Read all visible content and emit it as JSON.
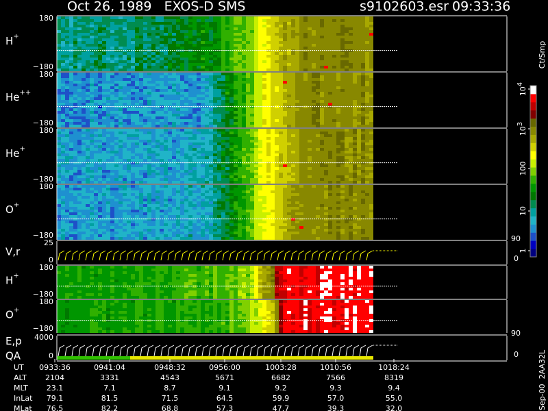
{
  "header": {
    "title": "Oct 26, 1989   EXOS-D SMS",
    "file": "s9102603.esr",
    "time": "09:33:36"
  },
  "panels": [
    {
      "label": "H",
      "sup": "+",
      "top": "180",
      "bottom": "−180"
    },
    {
      "label": "He",
      "sup": "++",
      "top": "180",
      "bottom": "−180"
    },
    {
      "label": "He",
      "sup": "+",
      "top": "180",
      "bottom": "−180"
    },
    {
      "label": "O",
      "sup": "+",
      "top": "180",
      "bottom": "−180"
    },
    {
      "label": "V,r",
      "top": "25",
      "bottom": "0",
      "right_top": "90",
      "right_bottom": "0"
    },
    {
      "label": "H",
      "sup": "+",
      "top": "180",
      "bottom": "−180"
    },
    {
      "label": "O",
      "sup": "+",
      "top": "180",
      "bottom": "−180"
    },
    {
      "label": "E,p",
      "label2": "QA",
      "top": "4000",
      "bottom": "0",
      "right_top": "90",
      "right_bottom": "0"
    }
  ],
  "colorbar": {
    "unit": "Ct/Smp",
    "ticks": [
      {
        "base": "10",
        "sup": "4"
      },
      {
        "base": "10",
        "sup": "3"
      },
      {
        "base": "100"
      },
      {
        "base": "10"
      },
      {
        "base": "1"
      }
    ]
  },
  "footer": {
    "rows": [
      {
        "label": "UT",
        "values": [
          "0933:36",
          "0941:04",
          "0948:32",
          "0956:00",
          "1003:28",
          "1010:56",
          "1018:24"
        ]
      },
      {
        "label": "ALT",
        "values": [
          "2104",
          "3331",
          "4543",
          "5671",
          "6682",
          "7566",
          "8319"
        ]
      },
      {
        "label": "MLT",
        "values": [
          "23.1",
          "7.1",
          "8.7",
          "9.1",
          "9.2",
          "9.3",
          "9.4"
        ]
      },
      {
        "label": "InLat",
        "values": [
          "79.1",
          "81.5",
          "71.5",
          "64.5",
          "59.9",
          "57.0",
          "55.0"
        ]
      },
      {
        "label": "MLat",
        "values": [
          "76.5",
          "82.2",
          "68.8",
          "57.3",
          "47.7",
          "39.3",
          "32.0"
        ]
      }
    ]
  },
  "stamp": "Sep-00  2AA32L"
}
